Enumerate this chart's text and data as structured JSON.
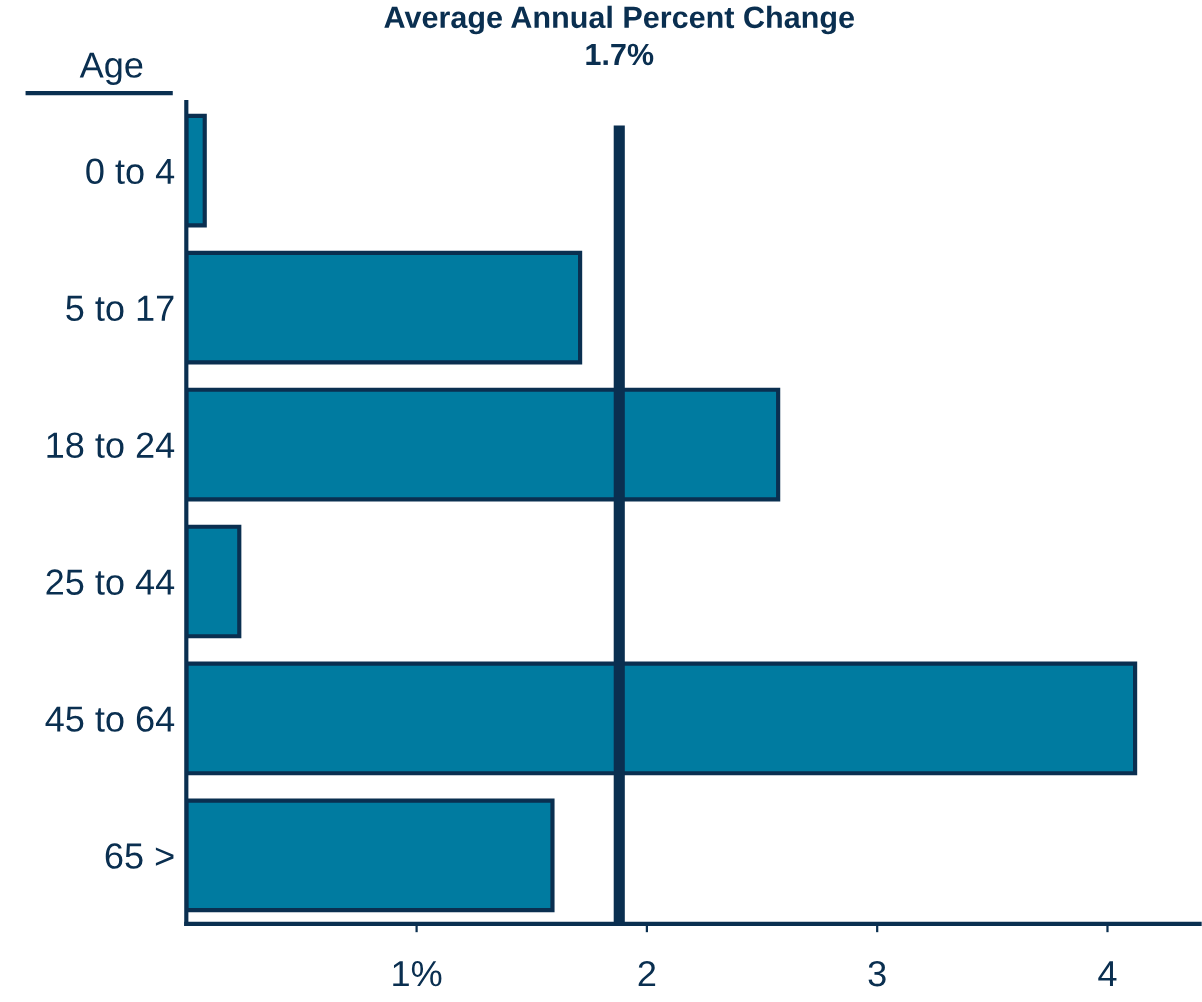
{
  "chart_data": {
    "type": "bar",
    "orientation": "horizontal",
    "title": "Average Annual Percent Change",
    "subtitle": "1.7%",
    "ylabel": "Age",
    "categories": [
      "0 to 4",
      "5 to 17",
      "18 to 24",
      "25 to 44",
      "45 to 64",
      "65 >"
    ],
    "values": [
      0.08,
      1.71,
      2.57,
      0.23,
      4.12,
      1.59
    ],
    "color": "#007ba0",
    "xlim": [
      0,
      4.4
    ],
    "xticks": [
      {
        "value": 1,
        "label": "1%"
      },
      2,
      3,
      4
    ],
    "grid": false,
    "ref_lines": [
      {
        "axis": "x",
        "value": 1.88,
        "color": "#0a2f50"
      }
    ]
  }
}
